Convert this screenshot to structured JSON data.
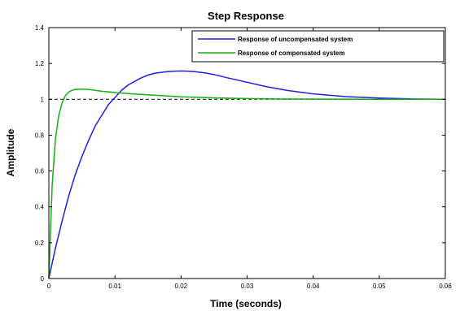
{
  "chart_data": {
    "type": "line",
    "title": "Step Response",
    "xlabel": "Time (seconds)",
    "ylabel": "Amplitude",
    "xlim": [
      0,
      0.06
    ],
    "ylim": [
      0,
      1.4
    ],
    "x_ticks": [
      "0",
      "0.01",
      "0.02",
      "0.03",
      "0.04",
      "0.05",
      "0.06"
    ],
    "y_ticks": [
      "0",
      "0.2",
      "0.4",
      "0.6",
      "0.8",
      "1",
      "1.2",
      "1.4"
    ],
    "legend_position": "top-right",
    "reference_line": {
      "y": 1,
      "style": "dashed",
      "color": "#000000"
    },
    "series": [
      {
        "name": "Response of uncompensated system",
        "color": "#1f1fe6",
        "x": [
          0,
          0.001,
          0.002,
          0.003,
          0.004,
          0.005,
          0.006,
          0.007,
          0.008,
          0.009,
          0.01,
          0.011,
          0.012,
          0.013,
          0.014,
          0.015,
          0.016,
          0.017,
          0.018,
          0.019,
          0.02,
          0.021,
          0.022,
          0.023,
          0.024,
          0.025,
          0.027,
          0.03,
          0.033,
          0.036,
          0.04,
          0.045,
          0.05,
          0.053,
          0.055,
          0.06
        ],
        "y": [
          0,
          0.17,
          0.32,
          0.46,
          0.58,
          0.68,
          0.77,
          0.85,
          0.91,
          0.97,
          1.01,
          1.05,
          1.08,
          1.1,
          1.12,
          1.135,
          1.145,
          1.15,
          1.155,
          1.157,
          1.158,
          1.157,
          1.155,
          1.15,
          1.145,
          1.138,
          1.12,
          1.095,
          1.07,
          1.05,
          1.03,
          1.015,
          1.007,
          1.004,
          1.002,
          1.0
        ]
      },
      {
        "name": "Response of compensated system",
        "color": "#13b213",
        "x": [
          0,
          0.0005,
          0.001,
          0.0015,
          0.002,
          0.0025,
          0.003,
          0.0035,
          0.004,
          0.005,
          0.006,
          0.007,
          0.008,
          0.01,
          0.012,
          0.015,
          0.018,
          0.02,
          0.025,
          0.03,
          0.035,
          0.04,
          0.05,
          0.06
        ],
        "y": [
          0,
          0.52,
          0.78,
          0.91,
          0.98,
          1.02,
          1.04,
          1.05,
          1.055,
          1.057,
          1.055,
          1.05,
          1.045,
          1.038,
          1.032,
          1.025,
          1.018,
          1.014,
          1.008,
          1.004,
          1.002,
          1.001,
          1.0,
          1.0
        ]
      }
    ]
  }
}
